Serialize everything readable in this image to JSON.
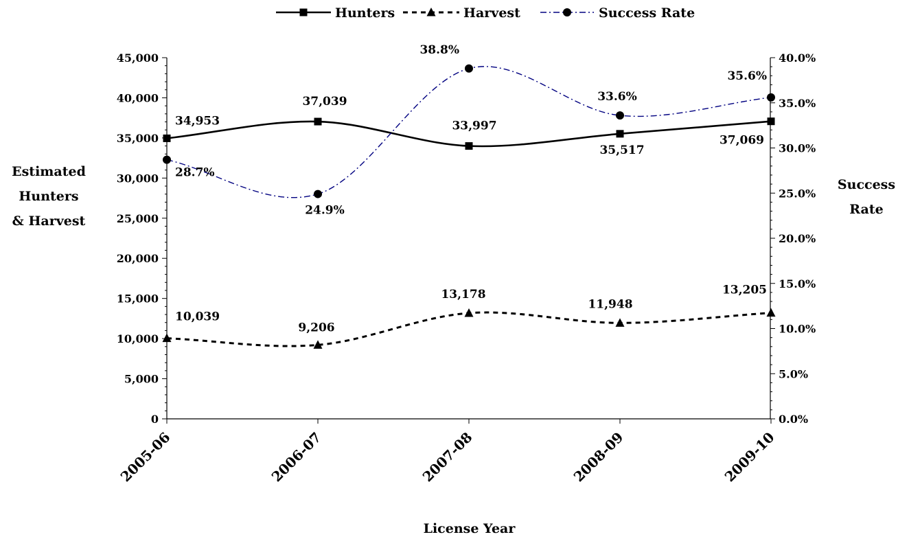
{
  "chart_data": {
    "type": "line",
    "categories": [
      "2005-06",
      "2006-07",
      "2007-08",
      "2008-09",
      "2009-10"
    ],
    "xlabel": "License Year",
    "ylabel": [
      "Estimated",
      "Hunters",
      "& Harvest"
    ],
    "y2label": [
      "Success",
      "Rate"
    ],
    "ylim": [
      0,
      45000
    ],
    "y_ticks": [
      "0",
      "5,000",
      "10,000",
      "15,000",
      "20,000",
      "25,000",
      "30,000",
      "35,000",
      "40,000",
      "45,000"
    ],
    "y2lim": [
      0,
      40
    ],
    "y2_ticks": [
      "0.0%",
      "5.0%",
      "10.0%",
      "15.0%",
      "20.0%",
      "25.0%",
      "30.0%",
      "35.0%",
      "40.0%"
    ],
    "grid": false,
    "legend_position": "top",
    "series": [
      {
        "name": "Hunters",
        "axis": "left",
        "values": [
          34953,
          37039,
          33997,
          35517,
          37069
        ],
        "labels": [
          "34,953",
          "37,039",
          "33,997",
          "35,517",
          "37,069"
        ],
        "marker": "square",
        "line_style": "solid",
        "color": "#000000"
      },
      {
        "name": "Harvest",
        "axis": "left",
        "values": [
          10039,
          9206,
          13178,
          11948,
          13205
        ],
        "labels": [
          "10,039",
          "9,206",
          "13,178",
          "11,948",
          "13,205"
        ],
        "marker": "triangle",
        "line_style": "dashed",
        "color": "#000000"
      },
      {
        "name": "Success Rate",
        "axis": "right",
        "values": [
          28.7,
          24.9,
          38.8,
          33.6,
          35.6
        ],
        "labels": [
          "28.7%",
          "24.9%",
          "38.8%",
          "33.6%",
          "35.6%"
        ],
        "marker": "circle",
        "line_style": "dash-dot",
        "color": "#000080"
      }
    ]
  }
}
